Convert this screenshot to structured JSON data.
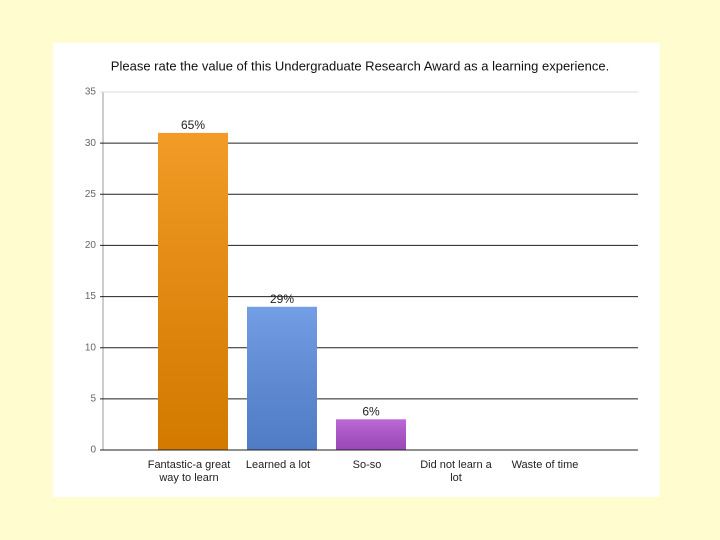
{
  "chart_data": {
    "type": "bar",
    "title": "Please rate the value of this Undergraduate Research Award as a learning experience.",
    "categories": [
      "Fantastic-a great way to learn",
      "Learned a lot",
      "So-so",
      "Did not learn a lot",
      "Waste of time"
    ],
    "values": [
      31,
      14,
      3,
      0,
      0
    ],
    "share_labels": [
      "65%",
      "29%",
      "6%",
      null,
      null
    ],
    "colors": [
      "#f08a00",
      "#5b8de0",
      "#b050d0",
      null,
      null
    ],
    "ylim": [
      0,
      35
    ],
    "yticks": [
      0,
      5,
      10,
      15,
      20,
      25,
      30,
      35
    ],
    "grid": true
  }
}
